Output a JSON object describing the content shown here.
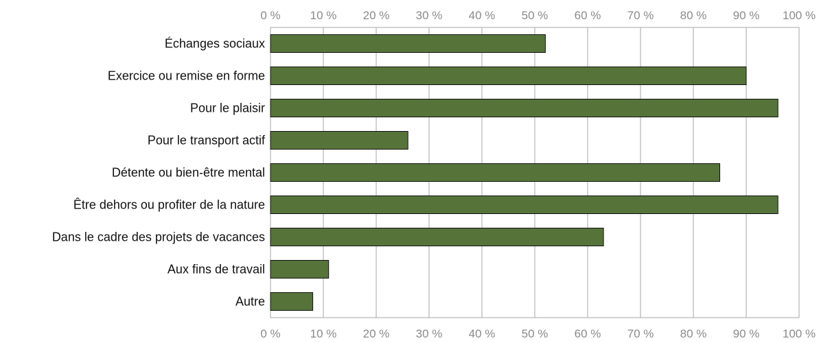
{
  "chart_data": {
    "type": "bar",
    "orientation": "horizontal",
    "categories": [
      "Échanges sociaux",
      "Exercice ou remise en forme",
      "Pour le plaisir",
      "Pour le transport actif",
      "Détente ou bien-être mental",
      "Être dehors ou profiter de la nature",
      "Dans le cadre des projets de vacances",
      "Aux fins de travail",
      "Autre"
    ],
    "values": [
      52,
      90,
      96,
      26,
      85,
      96,
      63,
      11,
      8
    ],
    "xlim": [
      0,
      100
    ],
    "x_ticks": [
      0,
      10,
      20,
      30,
      40,
      50,
      60,
      70,
      80,
      90,
      100
    ],
    "x_tick_labels": [
      "0 %",
      "10 %",
      "20 %",
      "30 %",
      "40 %",
      "50 %",
      "60 %",
      "70 %",
      "80 %",
      "90 %",
      "100 %"
    ],
    "x_axis_labels_position": "top and bottom",
    "grid": true,
    "bar_color": "#56743a",
    "title": "",
    "xlabel": "",
    "ylabel": ""
  }
}
